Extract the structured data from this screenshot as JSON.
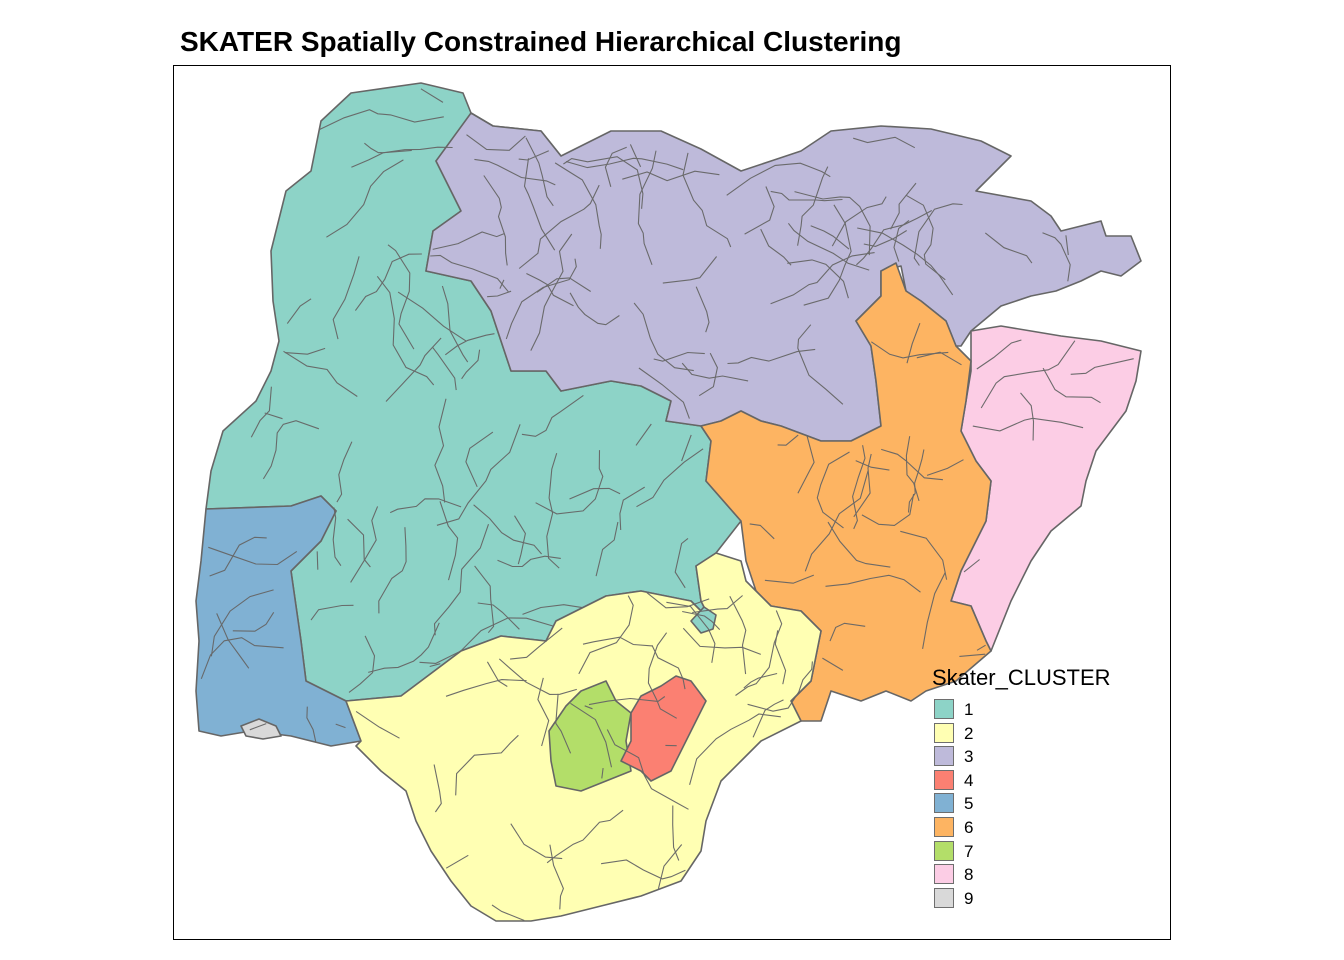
{
  "title": "SKATER Spatially Constrained Hierarchical Clustering",
  "legend": {
    "title": "Skater_CLUSTER",
    "items": [
      {
        "label": "1",
        "color": "#8DD3C7"
      },
      {
        "label": "2",
        "color": "#FFFFB3"
      },
      {
        "label": "3",
        "color": "#BEBADA"
      },
      {
        "label": "4",
        "color": "#FB8072"
      },
      {
        "label": "5",
        "color": "#80B1D3"
      },
      {
        "label": "6",
        "color": "#FDB462"
      },
      {
        "label": "7",
        "color": "#B3DE69"
      },
      {
        "label": "8",
        "color": "#FCCDE5"
      },
      {
        "label": "9",
        "color": "#D9D9D9"
      }
    ]
  },
  "style": {
    "border_color": "#666666"
  }
}
